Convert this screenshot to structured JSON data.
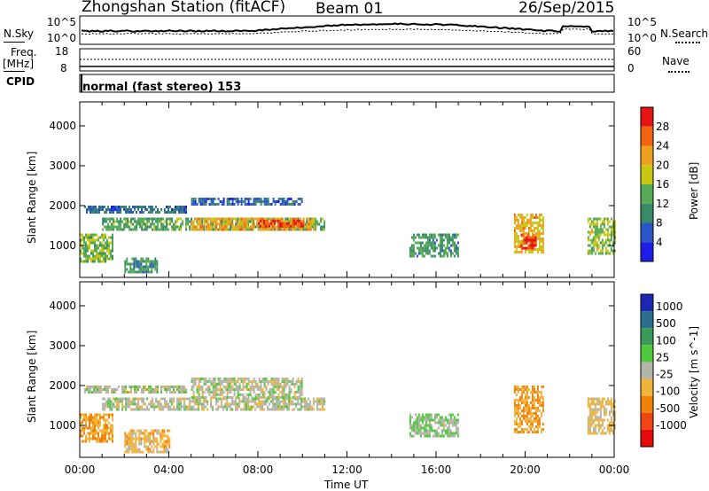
{
  "header": {
    "station": "Zhongshan Station (fitACF)",
    "beam": "Beam 01",
    "date": "26/Sep/2015"
  },
  "noise_panel": {
    "left_label": "N.Sky",
    "right_label": "N.Search",
    "left_ticks": [
      "10^5",
      "10^0"
    ],
    "right_ticks": [
      "10^5",
      "10^0"
    ]
  },
  "freq_panel": {
    "left_label_top": "Freq.",
    "left_label_unit": "[MHz]",
    "left_ticks": [
      "18",
      "8"
    ],
    "right_label": "Nave",
    "right_ticks": [
      "60",
      "0"
    ]
  },
  "cpid": {
    "label": "CPID",
    "mode_text": "normal (fast stereo) 153"
  },
  "x_axis": {
    "label": "Time UT",
    "ticks": [
      "00:00",
      "04:00",
      "08:00",
      "12:00",
      "16:00",
      "20:00",
      "00:00"
    ]
  },
  "colors": {
    "power_scale": [
      "#1e1ee6",
      "#2a56c8",
      "#3a8a6a",
      "#55aa55",
      "#c8c814",
      "#f0a020",
      "#f06414",
      "#e61414"
    ],
    "velocity_scale": [
      "#1e28b4",
      "#2a6e8c",
      "#3a9a5a",
      "#50c83c",
      "#b4b4aa",
      "#f0b43c",
      "#f0820a",
      "#f04614",
      "#e60a0a"
    ]
  },
  "chart_data": [
    {
      "type": "heatmap",
      "title": "Power",
      "ylabel": "Slant Range [km]",
      "xlabel": "",
      "ylim": [
        200,
        4600
      ],
      "yticks": [
        "1000",
        "2000",
        "3000",
        "4000"
      ],
      "colorbar": {
        "label": "Power [dB]",
        "ticks": [
          "4",
          "8",
          "12",
          "16",
          "20",
          "24",
          "28"
        ],
        "range": [
          0,
          30
        ]
      },
      "regions": [
        {
          "t0": 0.0,
          "t1": 1.5,
          "r0": 600,
          "r1": 1300,
          "value": 14
        },
        {
          "t0": 0.2,
          "t1": 4.8,
          "r0": 1800,
          "r1": 2000,
          "value": 7
        },
        {
          "t0": 1.0,
          "t1": 11.0,
          "r0": 1400,
          "r1": 1700,
          "value": 12
        },
        {
          "t0": 5.0,
          "t1": 10.5,
          "r0": 1400,
          "r1": 1700,
          "value": 20
        },
        {
          "t0": 8.0,
          "t1": 10.0,
          "r0": 1450,
          "r1": 1650,
          "value": 26
        },
        {
          "t0": 5.0,
          "t1": 10.0,
          "r0": 2000,
          "r1": 2200,
          "value": 6
        },
        {
          "t0": 2.0,
          "t1": 3.5,
          "r0": 300,
          "r1": 700,
          "value": 10
        },
        {
          "t0": 14.8,
          "t1": 17.0,
          "r0": 700,
          "r1": 1300,
          "value": 11
        },
        {
          "t0": 19.5,
          "t1": 20.8,
          "r0": 800,
          "r1": 1800,
          "value": 19
        },
        {
          "t0": 19.8,
          "t1": 20.5,
          "r0": 900,
          "r1": 1300,
          "value": 27
        },
        {
          "t0": 22.8,
          "t1": 24.0,
          "r0": 800,
          "r1": 1700,
          "value": 15
        }
      ]
    },
    {
      "type": "heatmap",
      "title": "Velocity",
      "ylabel": "Slant Range [km]",
      "xlabel": "Time UT",
      "ylim": [
        200,
        4600
      ],
      "yticks": [
        "1000",
        "2000",
        "3000",
        "4000"
      ],
      "colorbar": {
        "label": "Velocity [m s^-1]",
        "ticks": [
          "1000",
          "500",
          "100",
          "25",
          "-25",
          "-100",
          "-500",
          "-1000"
        ],
        "range": [
          -1000,
          1000
        ]
      },
      "regions": [
        {
          "t0": 0.0,
          "t1": 1.5,
          "r0": 600,
          "r1": 1300,
          "value": -300
        },
        {
          "t0": 0.2,
          "t1": 4.8,
          "r0": 1800,
          "r1": 2000,
          "value": 0
        },
        {
          "t0": 1.0,
          "t1": 11.0,
          "r0": 1400,
          "r1": 1700,
          "value": 0
        },
        {
          "t0": 5.0,
          "t1": 10.0,
          "r0": 1700,
          "r1": 2200,
          "value": 0
        },
        {
          "t0": 2.0,
          "t1": 4.0,
          "r0": 300,
          "r1": 900,
          "value": -200
        },
        {
          "t0": 14.8,
          "t1": 17.0,
          "r0": 700,
          "r1": 1300,
          "value": 60
        },
        {
          "t0": 19.5,
          "t1": 20.8,
          "r0": 800,
          "r1": 2000,
          "value": -300
        },
        {
          "t0": 22.8,
          "t1": 24.0,
          "r0": 800,
          "r1": 1700,
          "value": -150
        }
      ]
    }
  ]
}
